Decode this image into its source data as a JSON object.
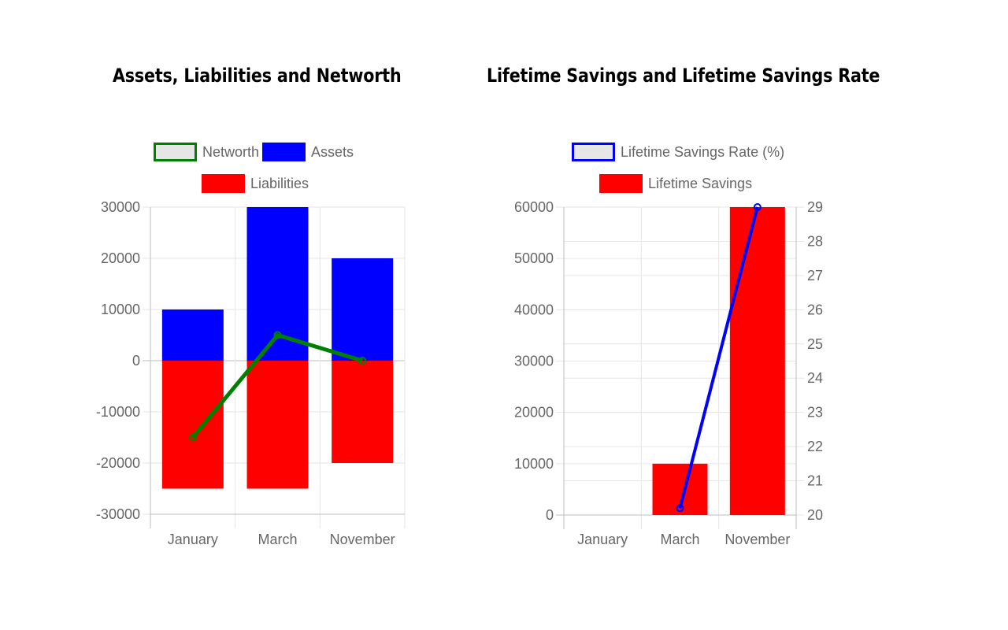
{
  "chart_data": [
    {
      "type": "bar",
      "title": "Assets, Liabilities and Networth",
      "categories": [
        "January",
        "March",
        "November"
      ],
      "stacked": true,
      "series": [
        {
          "name": "Networth",
          "type": "line",
          "color": "#008000",
          "values": [
            -15000,
            5000,
            0
          ]
        },
        {
          "name": "Assets",
          "type": "bar",
          "color": "#0000ff",
          "values": [
            10000,
            30000,
            20000
          ]
        },
        {
          "name": "Liabilities",
          "type": "bar",
          "color": "#ff0000",
          "values": [
            -25000,
            -25000,
            -20000
          ]
        }
      ],
      "ylim": [
        -30000,
        30000
      ],
      "yticks": [
        "30000",
        "20000",
        "10000",
        "0",
        "-10000",
        "-20000",
        "-30000"
      ],
      "legend": "top",
      "grid": true
    },
    {
      "type": "bar",
      "title": "Lifetime Savings and Lifetime Savings Rate",
      "categories": [
        "January",
        "March",
        "November"
      ],
      "series": [
        {
          "name": "Lifetime Savings Rate (%)",
          "type": "line",
          "axis": "right",
          "color": "#0000ff",
          "values": [
            null,
            20.2,
            29
          ]
        },
        {
          "name": "Lifetime Savings",
          "type": "bar",
          "axis": "left",
          "color": "#ff0000",
          "values": [
            0,
            10000,
            60000
          ]
        }
      ],
      "ylim": [
        0,
        60000
      ],
      "yticks": [
        "60000",
        "50000",
        "40000",
        "30000",
        "20000",
        "10000",
        "0"
      ],
      "y2lim": [
        20,
        29
      ],
      "y2ticks": [
        "29",
        "28",
        "27",
        "26",
        "25",
        "24",
        "23",
        "22",
        "21",
        "20"
      ],
      "legend": "top",
      "grid": true
    }
  ]
}
